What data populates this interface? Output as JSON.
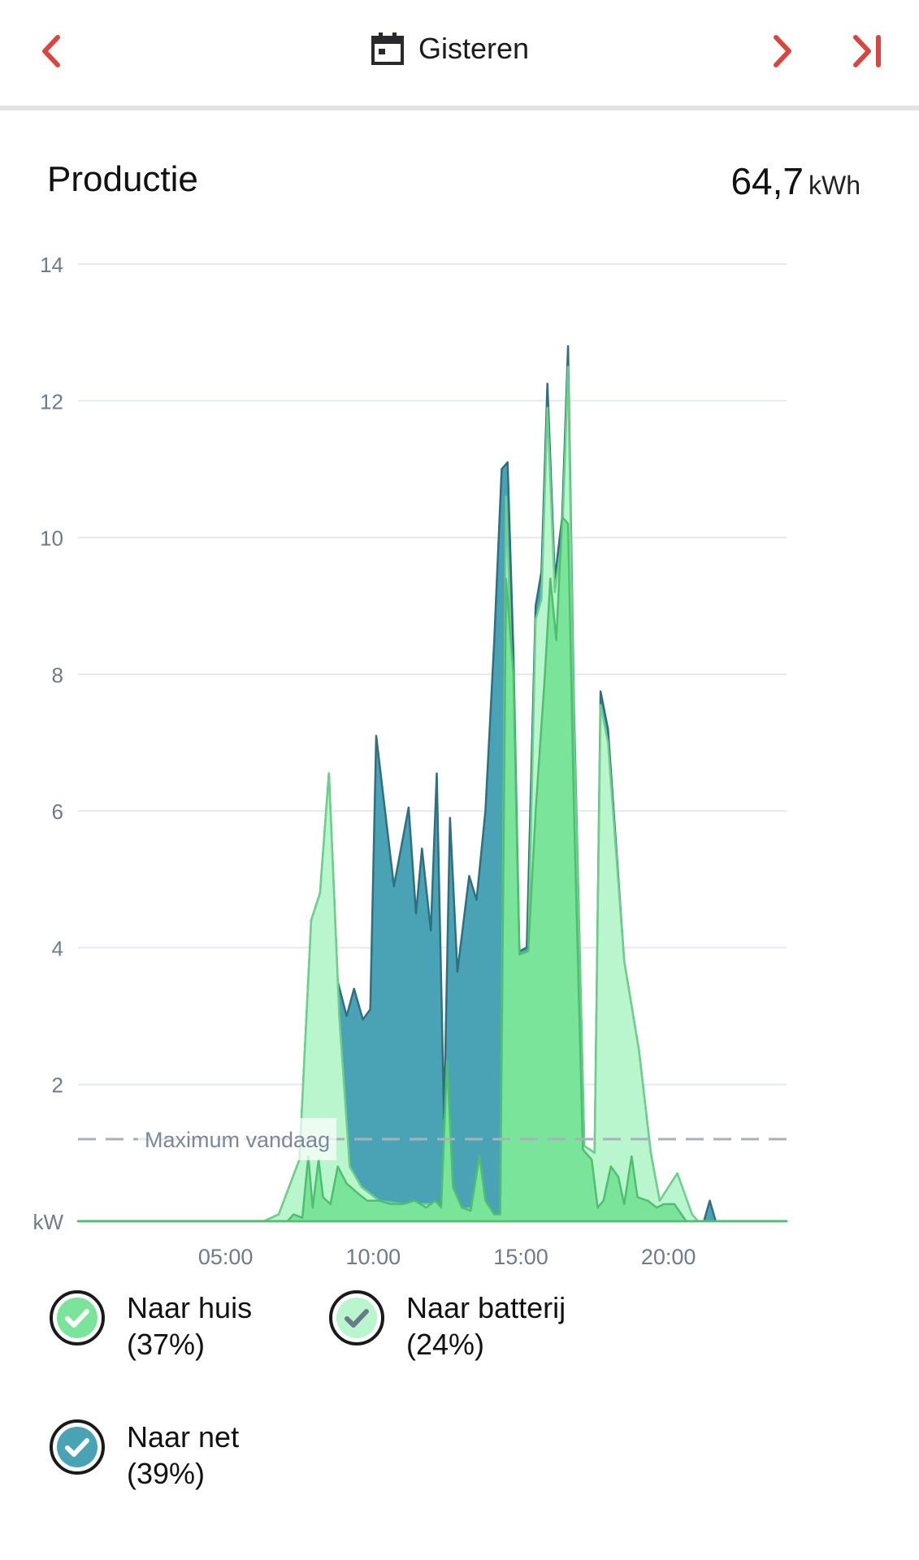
{
  "header": {
    "date_label": "Gisteren",
    "icons": {
      "prev": "chevron-left-icon",
      "next": "chevron-right-icon",
      "last": "skip-to-end-icon",
      "calendar": "calendar-icon"
    },
    "accent_color": "#d9453f"
  },
  "production": {
    "title": "Productie",
    "total_value": "64,7",
    "total_unit": "kWh"
  },
  "chart_data": {
    "type": "area",
    "stacked": false,
    "y_axis": {
      "unit_label": "kW",
      "ticks": [
        "14",
        "12",
        "10",
        "8",
        "6",
        "4",
        "2"
      ],
      "ylim": [
        0,
        14
      ]
    },
    "x_axis": {
      "ticks": [
        "05:00",
        "10:00",
        "15:00",
        "20:00"
      ],
      "xlim": [
        "00:00",
        "24:00"
      ]
    },
    "grid": true,
    "reference_line": {
      "label": "Maximum vandaag",
      "value": 1.2
    },
    "series": [
      {
        "name": "Naar net",
        "color": "#4aa3b4",
        "values": [
          [
            0,
            0
          ],
          [
            6.3,
            0
          ],
          [
            6.8,
            0.1
          ],
          [
            7.5,
            0.9
          ],
          [
            7.9,
            4.4
          ],
          [
            8.2,
            4.8
          ],
          [
            8.5,
            6.55
          ],
          [
            8.8,
            3.5
          ],
          [
            9.1,
            3.0
          ],
          [
            9.35,
            3.4
          ],
          [
            9.65,
            2.95
          ],
          [
            9.9,
            3.1
          ],
          [
            10.1,
            7.1
          ],
          [
            10.7,
            4.9
          ],
          [
            11.2,
            6.05
          ],
          [
            11.45,
            4.5
          ],
          [
            11.65,
            5.45
          ],
          [
            11.95,
            4.25
          ],
          [
            12.15,
            6.55
          ],
          [
            12.4,
            1.5
          ],
          [
            12.6,
            5.9
          ],
          [
            12.85,
            3.65
          ],
          [
            13.25,
            5.05
          ],
          [
            13.5,
            4.7
          ],
          [
            13.8,
            6.0
          ],
          [
            14.1,
            8.5
          ],
          [
            14.35,
            11.0
          ],
          [
            14.55,
            11.1
          ],
          [
            14.75,
            8.3
          ],
          [
            14.95,
            3.95
          ],
          [
            15.2,
            4.0
          ],
          [
            15.5,
            9.0
          ],
          [
            15.7,
            9.5
          ],
          [
            15.9,
            12.25
          ],
          [
            16.15,
            9.4
          ],
          [
            16.4,
            10.3
          ],
          [
            16.6,
            12.8
          ],
          [
            16.8,
            7.5
          ],
          [
            17.15,
            1.1
          ],
          [
            17.5,
            1.0
          ],
          [
            17.7,
            7.75
          ],
          [
            17.95,
            7.2
          ],
          [
            18.5,
            3.8
          ],
          [
            19.0,
            2.5
          ],
          [
            19.4,
            1.0
          ],
          [
            19.7,
            0.3
          ],
          [
            20.3,
            0.4
          ],
          [
            20.7,
            0.1
          ],
          [
            21.0,
            0
          ],
          [
            21.2,
            0
          ],
          [
            21.4,
            0.3
          ],
          [
            21.6,
            0
          ],
          [
            24,
            0
          ]
        ]
      },
      {
        "name": "Naar batterij",
        "color": "#b9f5cd",
        "values": [
          [
            0,
            0
          ],
          [
            6.3,
            0
          ],
          [
            6.8,
            0.1
          ],
          [
            7.5,
            0.9
          ],
          [
            7.9,
            4.4
          ],
          [
            8.2,
            4.8
          ],
          [
            8.5,
            6.55
          ],
          [
            8.85,
            3.0
          ],
          [
            9.2,
            0.8
          ],
          [
            9.6,
            0.5
          ],
          [
            10.2,
            0.3
          ],
          [
            11,
            0.25
          ],
          [
            12,
            0.25
          ],
          [
            12.5,
            0.15
          ],
          [
            13.4,
            0.2
          ],
          [
            14.0,
            0.1
          ],
          [
            14.3,
            0.1
          ],
          [
            14.5,
            10.6
          ],
          [
            14.7,
            8.0
          ],
          [
            14.95,
            3.9
          ],
          [
            15.25,
            3.95
          ],
          [
            15.5,
            8.8
          ],
          [
            15.7,
            9.1
          ],
          [
            15.9,
            11.9
          ],
          [
            16.15,
            9.2
          ],
          [
            16.4,
            10.0
          ],
          [
            16.6,
            12.5
          ],
          [
            16.8,
            7.3
          ],
          [
            17.15,
            1.1
          ],
          [
            17.5,
            1.0
          ],
          [
            17.7,
            7.55
          ],
          [
            17.95,
            7.0
          ],
          [
            18.5,
            3.8
          ],
          [
            19.0,
            2.5
          ],
          [
            19.4,
            1.0
          ],
          [
            19.7,
            0.3
          ],
          [
            20.3,
            0.7
          ],
          [
            20.8,
            0.1
          ],
          [
            21.0,
            0
          ],
          [
            24,
            0
          ]
        ]
      },
      {
        "name": "Naar huis",
        "color": "#7ae59a",
        "values": [
          [
            0,
            0
          ],
          [
            7.1,
            0
          ],
          [
            7.3,
            0.1
          ],
          [
            7.6,
            0.05
          ],
          [
            7.8,
            0.95
          ],
          [
            7.95,
            0.2
          ],
          [
            8.15,
            0.9
          ],
          [
            8.3,
            0.35
          ],
          [
            8.55,
            0.25
          ],
          [
            8.8,
            0.8
          ],
          [
            9.1,
            0.55
          ],
          [
            9.5,
            0.4
          ],
          [
            9.8,
            0.3
          ],
          [
            10.2,
            0.3
          ],
          [
            10.6,
            0.25
          ],
          [
            11,
            0.25
          ],
          [
            11.4,
            0.3
          ],
          [
            11.8,
            0.2
          ],
          [
            12.1,
            0.3
          ],
          [
            12.3,
            0.2
          ],
          [
            12.5,
            2.35
          ],
          [
            12.7,
            0.5
          ],
          [
            13.0,
            0.2
          ],
          [
            13.3,
            0.15
          ],
          [
            13.6,
            0.95
          ],
          [
            13.8,
            0.3
          ],
          [
            14.1,
            0.1
          ],
          [
            14.3,
            0.1
          ],
          [
            14.5,
            9.4
          ],
          [
            14.75,
            8.0
          ],
          [
            14.95,
            3.9
          ],
          [
            15.25,
            3.95
          ],
          [
            15.5,
            6.0
          ],
          [
            15.8,
            7.9
          ],
          [
            16.0,
            9.4
          ],
          [
            16.2,
            8.5
          ],
          [
            16.4,
            10.3
          ],
          [
            16.6,
            10.2
          ],
          [
            16.8,
            6.0
          ],
          [
            17.1,
            1.05
          ],
          [
            17.4,
            0.9
          ],
          [
            17.6,
            0.2
          ],
          [
            17.8,
            0.3
          ],
          [
            18.05,
            0.8
          ],
          [
            18.3,
            0.65
          ],
          [
            18.5,
            0.25
          ],
          [
            18.75,
            0.95
          ],
          [
            18.95,
            0.35
          ],
          [
            19.3,
            0.3
          ],
          [
            19.6,
            0.2
          ],
          [
            19.85,
            0.25
          ],
          [
            20.2,
            0.25
          ],
          [
            20.6,
            0
          ],
          [
            24,
            0
          ]
        ]
      }
    ]
  },
  "legend": [
    {
      "label_line1": "Naar huis",
      "label_line2": "(37%)",
      "fill": "#7ae59a",
      "check_color": "#ffffff",
      "icon": "check-circle-icon"
    },
    {
      "label_line1": "Naar batterij",
      "label_line2": "(24%)",
      "fill": "#b9f5cd",
      "check_color": "#6b7a8a",
      "icon": "check-circle-icon"
    },
    {
      "label_line1": "Naar net",
      "label_line2": "(39%)",
      "fill": "#4aa3b4",
      "check_color": "#ffffff",
      "icon": "check-circle-icon"
    }
  ]
}
